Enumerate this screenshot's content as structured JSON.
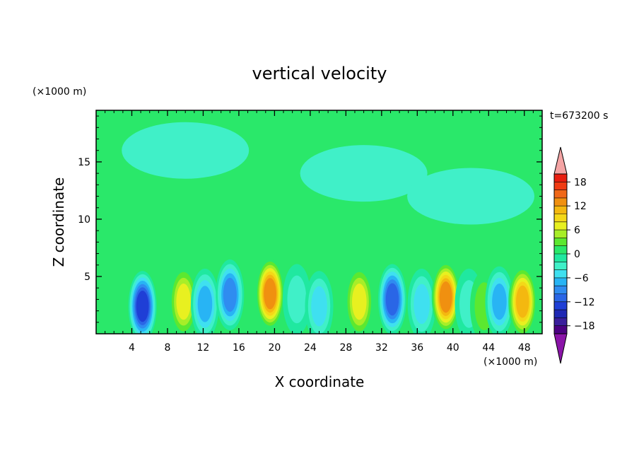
{
  "chart_data": {
    "type": "heatmap",
    "title": "vertical velocity",
    "xlabel": "X coordinate",
    "ylabel": "Z coordinate",
    "x_unit": "(×1000 m)",
    "y_unit": "(×1000 m)",
    "time_label": "t=673200 s",
    "xlim": [
      0,
      50
    ],
    "ylim": [
      0,
      19.5
    ],
    "x_ticks": [
      4,
      8,
      12,
      16,
      20,
      24,
      28,
      32,
      36,
      40,
      44,
      48
    ],
    "y_ticks": [
      5,
      10,
      15
    ],
    "colorbar": {
      "levels": [
        -20,
        -18,
        -16,
        -14,
        -12,
        -10,
        -8,
        -6,
        -4,
        -2,
        0,
        2,
        4,
        6,
        8,
        10,
        12,
        14,
        16,
        18,
        20
      ],
      "labeled_levels": [
        18,
        12,
        6,
        0,
        -6,
        -12,
        -18
      ],
      "colors": [
        "#4b0082",
        "#3a1f9c",
        "#1f28b4",
        "#1f3fd6",
        "#2a66e6",
        "#2f8cf0",
        "#28b4f4",
        "#3fe0f0",
        "#40f0c8",
        "#20e8a0",
        "#2ae86a",
        "#5ce830",
        "#a8ee28",
        "#e8f020",
        "#f4d818",
        "#f4b810",
        "#f09010",
        "#f06818",
        "#f03c14",
        "#e81e10"
      ],
      "under_color": "#8a14a8",
      "over_color": "#f4a4a4"
    },
    "features": [
      {
        "x": 5.2,
        "z": 2.4,
        "value": -14
      },
      {
        "x": 9.8,
        "z": 2.8,
        "value": 8
      },
      {
        "x": 12.2,
        "z": 2.6,
        "value": -8
      },
      {
        "x": 15.0,
        "z": 3.4,
        "value": -10
      },
      {
        "x": 19.5,
        "z": 3.5,
        "value": 14
      },
      {
        "x": 22.5,
        "z": 3.0,
        "value": -5
      },
      {
        "x": 25.0,
        "z": 2.4,
        "value": -6
      },
      {
        "x": 29.5,
        "z": 2.8,
        "value": 8
      },
      {
        "x": 33.2,
        "z": 3.0,
        "value": -12
      },
      {
        "x": 36.5,
        "z": 2.6,
        "value": -6
      },
      {
        "x": 39.2,
        "z": 3.2,
        "value": 14
      },
      {
        "x": 41.8,
        "z": 2.6,
        "value": -5
      },
      {
        "x": 43.5,
        "z": 2.4,
        "value": 5
      },
      {
        "x": 45.2,
        "z": 2.8,
        "value": -8
      },
      {
        "x": 47.8,
        "z": 2.8,
        "value": 12
      },
      {
        "x": 30.0,
        "z": 14.0,
        "value": 1
      },
      {
        "x": 10.0,
        "z": 16.0,
        "value": 1
      },
      {
        "x": 42.0,
        "z": 12.0,
        "value": 1
      }
    ]
  }
}
